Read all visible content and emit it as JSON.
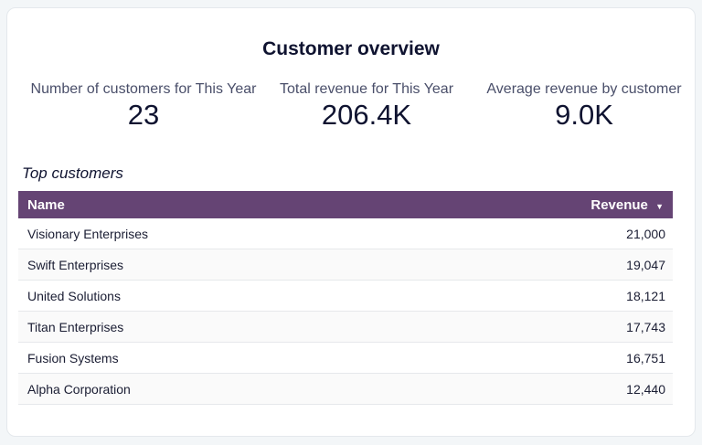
{
  "title": "Customer overview",
  "kpis": [
    {
      "label": "Number of customers for This Year",
      "value": "23"
    },
    {
      "label": "Total revenue for This Year",
      "value": "206.4K"
    },
    {
      "label": "Average revenue by customer",
      "value": "9.0K"
    }
  ],
  "table": {
    "title": "Top customers",
    "columns": [
      "Name",
      "Revenue"
    ],
    "sort_indicator": "▼",
    "header_color": "#654474",
    "rows": [
      [
        "Visionary Enterprises",
        "21,000"
      ],
      [
        "Swift Enterprises",
        "19,047"
      ],
      [
        "United Solutions",
        "18,121"
      ],
      [
        "Titan Enterprises",
        "17,743"
      ],
      [
        "Fusion Systems",
        "16,751"
      ],
      [
        "Alpha Corporation",
        "12,440"
      ]
    ]
  }
}
